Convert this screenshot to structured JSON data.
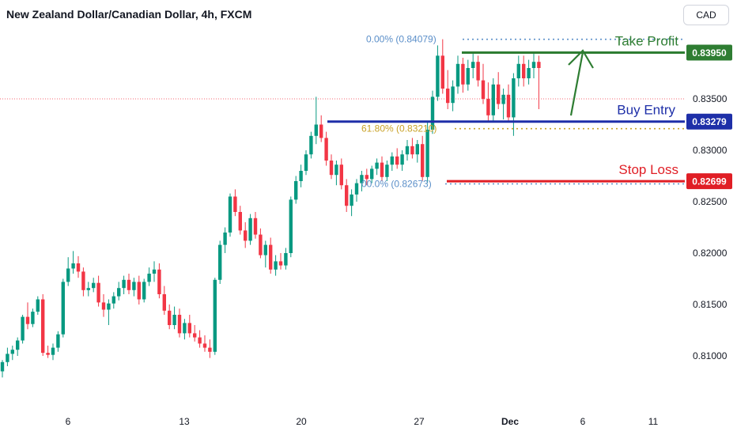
{
  "header": {
    "title": "New Zealand Dollar/Canadian Dollar, 4h, FXCM",
    "currency": "CAD"
  },
  "chart_data": {
    "type": "candlestick",
    "symbol": "NZDCAD",
    "timeframe": "4h",
    "ylim": [
      0.8055,
      0.8435
    ],
    "y_ticks": [
      "0.83500",
      "0.83000",
      "0.82500",
      "0.82000",
      "0.81500",
      "0.81000"
    ],
    "x_ticks": [
      "6",
      "13",
      "20",
      "27",
      "Dec",
      "6",
      "11"
    ],
    "up_color": "#089981",
    "down_color": "#f23645",
    "candles": [
      [
        0.8085,
        0.8096,
        0.8079,
        0.8094
      ],
      [
        0.8094,
        0.8108,
        0.809,
        0.8102
      ],
      [
        0.8102,
        0.811,
        0.8096,
        0.8106
      ],
      [
        0.8106,
        0.8118,
        0.81,
        0.8115
      ],
      [
        0.8115,
        0.814,
        0.8112,
        0.8138
      ],
      [
        0.8138,
        0.8152,
        0.8126,
        0.8131
      ],
      [
        0.8131,
        0.8146,
        0.8128,
        0.8143
      ],
      [
        0.8143,
        0.8158,
        0.814,
        0.8155
      ],
      [
        0.8155,
        0.816,
        0.81,
        0.8103
      ],
      [
        0.8103,
        0.811,
        0.8098,
        0.8101
      ],
      [
        0.8101,
        0.8112,
        0.8096,
        0.8108
      ],
      [
        0.8108,
        0.8124,
        0.8104,
        0.8121
      ],
      [
        0.8121,
        0.8175,
        0.8118,
        0.8172
      ],
      [
        0.8172,
        0.8196,
        0.8168,
        0.8185
      ],
      [
        0.8185,
        0.8202,
        0.818,
        0.819
      ],
      [
        0.819,
        0.8197,
        0.8176,
        0.8182
      ],
      [
        0.8182,
        0.8186,
        0.8158,
        0.8164
      ],
      [
        0.8164,
        0.8172,
        0.8158,
        0.8166
      ],
      [
        0.8166,
        0.8176,
        0.8162,
        0.8171
      ],
      [
        0.8171,
        0.8178,
        0.8148,
        0.8152
      ],
      [
        0.8152,
        0.816,
        0.8138,
        0.8145
      ],
      [
        0.8145,
        0.8155,
        0.813,
        0.8151
      ],
      [
        0.8151,
        0.8162,
        0.8146,
        0.8158
      ],
      [
        0.8158,
        0.8172,
        0.8154,
        0.8166
      ],
      [
        0.8166,
        0.8178,
        0.816,
        0.8174
      ],
      [
        0.8174,
        0.818,
        0.816,
        0.8164
      ],
      [
        0.8164,
        0.8176,
        0.8158,
        0.8172
      ],
      [
        0.8172,
        0.8178,
        0.815,
        0.8155
      ],
      [
        0.8155,
        0.8175,
        0.8152,
        0.8172
      ],
      [
        0.8172,
        0.8186,
        0.8168,
        0.818
      ],
      [
        0.818,
        0.8192,
        0.8172,
        0.8184
      ],
      [
        0.8184,
        0.819,
        0.8156,
        0.816
      ],
      [
        0.816,
        0.8168,
        0.814,
        0.8144
      ],
      [
        0.8144,
        0.815,
        0.8126,
        0.813
      ],
      [
        0.813,
        0.8148,
        0.8126,
        0.814
      ],
      [
        0.814,
        0.8146,
        0.8118,
        0.8122
      ],
      [
        0.8122,
        0.8136,
        0.8116,
        0.8132
      ],
      [
        0.8132,
        0.814,
        0.8118,
        0.8122
      ],
      [
        0.8122,
        0.813,
        0.8114,
        0.8118
      ],
      [
        0.8118,
        0.8125,
        0.8108,
        0.8112
      ],
      [
        0.8112,
        0.812,
        0.8104,
        0.8108
      ],
      [
        0.8108,
        0.8116,
        0.8098,
        0.8104
      ],
      [
        0.8104,
        0.8176,
        0.8101,
        0.8174
      ],
      [
        0.8174,
        0.8212,
        0.817,
        0.8208
      ],
      [
        0.8208,
        0.8225,
        0.82,
        0.822
      ],
      [
        0.822,
        0.8258,
        0.8216,
        0.8255
      ],
      [
        0.8255,
        0.8262,
        0.8236,
        0.824
      ],
      [
        0.824,
        0.8246,
        0.8218,
        0.8222
      ],
      [
        0.8222,
        0.823,
        0.8205,
        0.8212
      ],
      [
        0.8212,
        0.8238,
        0.8208,
        0.8234
      ],
      [
        0.8234,
        0.824,
        0.8214,
        0.8218
      ],
      [
        0.8218,
        0.8224,
        0.8195,
        0.8198
      ],
      [
        0.8198,
        0.8212,
        0.8186,
        0.8208
      ],
      [
        0.8208,
        0.8215,
        0.818,
        0.8184
      ],
      [
        0.8184,
        0.8198,
        0.8178,
        0.8192
      ],
      [
        0.8192,
        0.82,
        0.8184,
        0.8188
      ],
      [
        0.8188,
        0.8205,
        0.8184,
        0.82
      ],
      [
        0.82,
        0.8255,
        0.8196,
        0.8252
      ],
      [
        0.8252,
        0.8275,
        0.8248,
        0.827
      ],
      [
        0.827,
        0.8286,
        0.8264,
        0.828
      ],
      [
        0.828,
        0.83,
        0.8276,
        0.8296
      ],
      [
        0.8296,
        0.8318,
        0.8292,
        0.8314
      ],
      [
        0.8314,
        0.8352,
        0.8306,
        0.8325
      ],
      [
        0.8325,
        0.8334,
        0.8308,
        0.8312
      ],
      [
        0.8312,
        0.8318,
        0.8285,
        0.829
      ],
      [
        0.829,
        0.8296,
        0.8272,
        0.8276
      ],
      [
        0.8276,
        0.829,
        0.8266,
        0.8286
      ],
      [
        0.8286,
        0.8292,
        0.8262,
        0.8266
      ],
      [
        0.8266,
        0.8272,
        0.824,
        0.8246
      ],
      [
        0.8246,
        0.8262,
        0.8236,
        0.8257
      ],
      [
        0.8257,
        0.8272,
        0.825,
        0.8268
      ],
      [
        0.8268,
        0.828,
        0.826,
        0.8276
      ],
      [
        0.8276,
        0.8282,
        0.8266,
        0.8272
      ],
      [
        0.8272,
        0.8285,
        0.8268,
        0.8282
      ],
      [
        0.8282,
        0.8292,
        0.8276,
        0.8288
      ],
      [
        0.8288,
        0.8294,
        0.827,
        0.8274
      ],
      [
        0.8274,
        0.829,
        0.827,
        0.8286
      ],
      [
        0.8286,
        0.8298,
        0.828,
        0.8294
      ],
      [
        0.8294,
        0.8302,
        0.8282,
        0.8286
      ],
      [
        0.8286,
        0.83,
        0.828,
        0.8296
      ],
      [
        0.8296,
        0.831,
        0.829,
        0.8304
      ],
      [
        0.8304,
        0.8312,
        0.8292,
        0.8296
      ],
      [
        0.8296,
        0.831,
        0.8288,
        0.8306
      ],
      [
        0.8306,
        0.8314,
        0.827,
        0.8274
      ],
      [
        0.8274,
        0.8328,
        0.8268,
        0.832
      ],
      [
        0.832,
        0.8358,
        0.8316,
        0.8352
      ],
      [
        0.8352,
        0.8402,
        0.8348,
        0.8392
      ],
      [
        0.8392,
        0.8408,
        0.8355,
        0.836
      ],
      [
        0.836,
        0.8378,
        0.834,
        0.8346
      ],
      [
        0.8346,
        0.8368,
        0.8338,
        0.8362
      ],
      [
        0.8362,
        0.8392,
        0.8355,
        0.8384
      ],
      [
        0.8384,
        0.839,
        0.8356,
        0.8364
      ],
      [
        0.8364,
        0.8388,
        0.8358,
        0.838
      ],
      [
        0.838,
        0.8394,
        0.837,
        0.8386
      ],
      [
        0.8386,
        0.8392,
        0.8362,
        0.8368
      ],
      [
        0.8368,
        0.8384,
        0.8345,
        0.835
      ],
      [
        0.835,
        0.8366,
        0.8328,
        0.8334
      ],
      [
        0.8334,
        0.837,
        0.8328,
        0.8364
      ],
      [
        0.8364,
        0.8376,
        0.834,
        0.8345
      ],
      [
        0.8345,
        0.836,
        0.833,
        0.8354
      ],
      [
        0.8354,
        0.8364,
        0.8328,
        0.8332
      ],
      [
        0.8332,
        0.8375,
        0.8314,
        0.837
      ],
      [
        0.837,
        0.8392,
        0.8362,
        0.8384
      ],
      [
        0.8384,
        0.8392,
        0.8362,
        0.837
      ],
      [
        0.837,
        0.8388,
        0.8364,
        0.838
      ],
      [
        0.838,
        0.8394,
        0.837,
        0.8386
      ],
      [
        0.8386,
        0.8392,
        0.834,
        0.838
      ]
    ],
    "fib_levels": [
      {
        "label": "0.00% (0.84079)",
        "value": 0.84079,
        "color": "#5b8fc9"
      },
      {
        "label": "61.80% (0.83210)",
        "value": 0.8321,
        "color": "#c9a227"
      },
      {
        "label": "00.0% (0.82673)",
        "value": 0.82673,
        "color": "#5b8fc9"
      }
    ],
    "levels": [
      {
        "label": "Take Profit",
        "value": 0.8395,
        "price_label": "0.83950",
        "color": "#2e7d32"
      },
      {
        "label": "Buy Entry",
        "value": 0.83279,
        "price_label": "0.83279",
        "color": "#1e2fa8"
      },
      {
        "label": "Stop Loss",
        "value": 0.82699,
        "price_label": "0.82699",
        "color": "#e01e25"
      }
    ],
    "current_price_line": 0.835
  }
}
